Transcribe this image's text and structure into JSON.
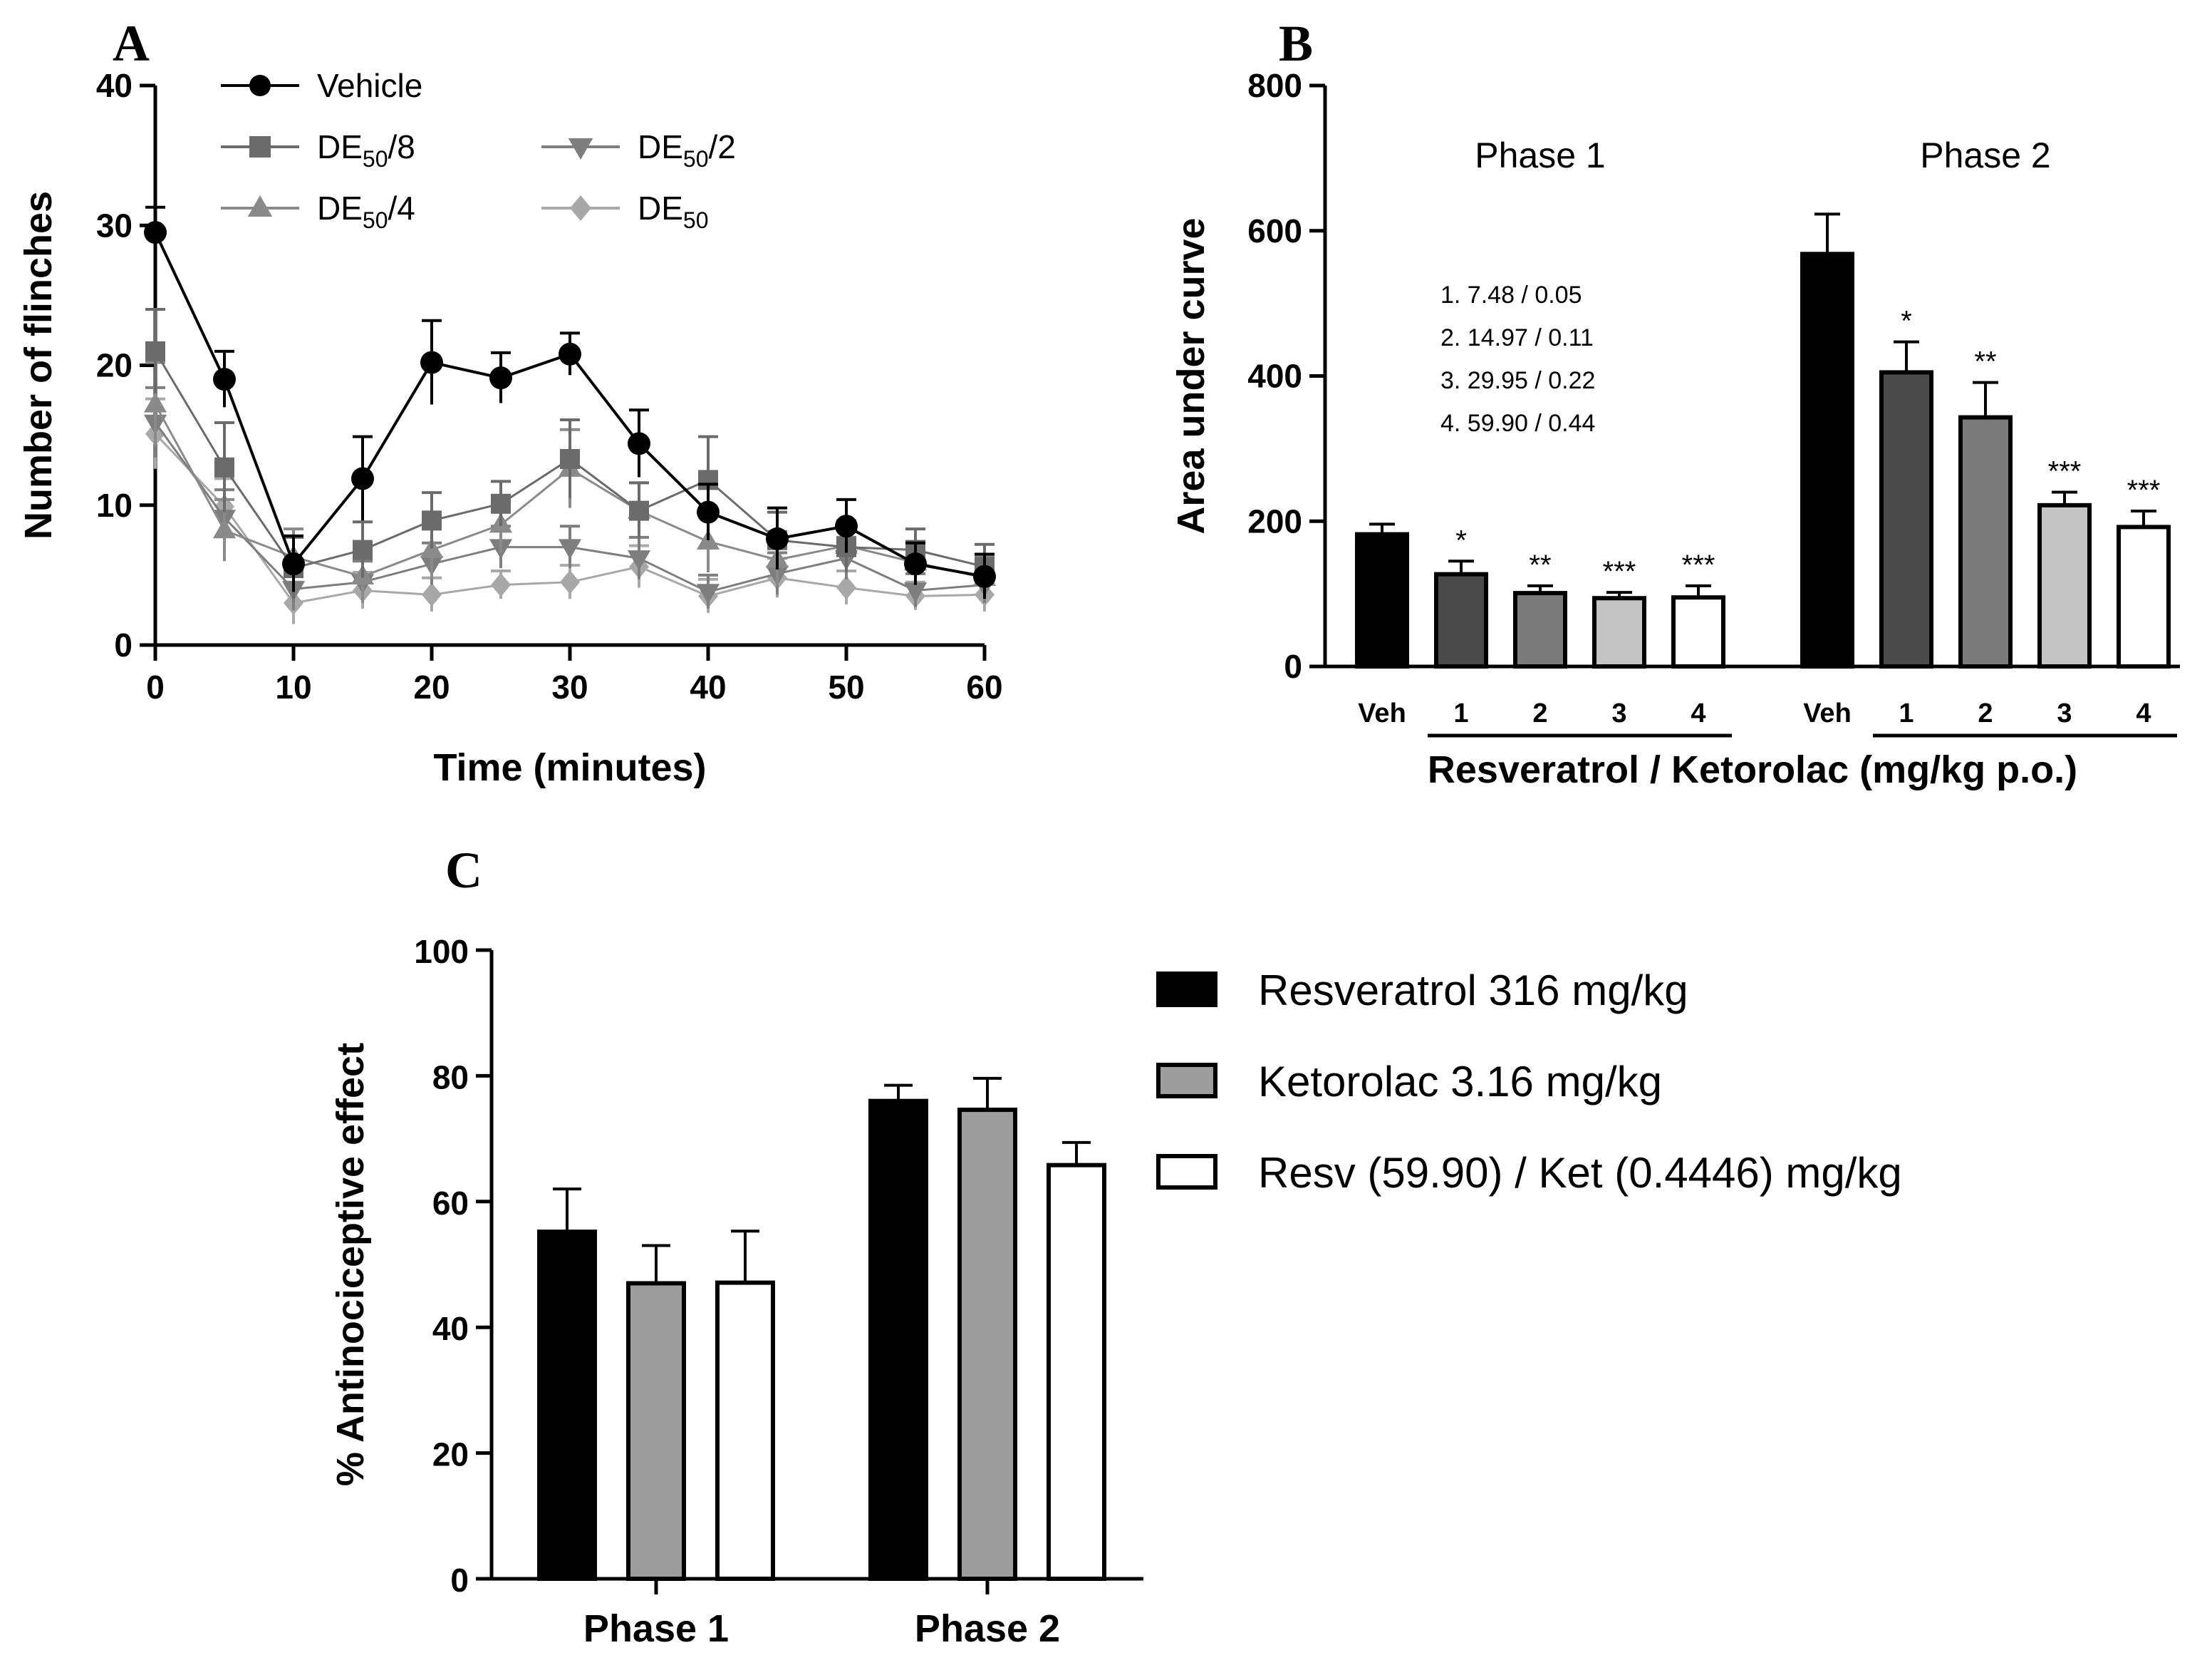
{
  "chart_data": [
    {
      "panel": "A",
      "type": "line",
      "xlabel": "Time (minutes)",
      "ylabel": "Number of flinches",
      "xlim": [
        0,
        60
      ],
      "ylim": [
        0,
        40
      ],
      "xticks": [
        0,
        10,
        20,
        30,
        40,
        50,
        60
      ],
      "yticks": [
        0,
        10,
        20,
        30,
        40
      ],
      "x": [
        0,
        5,
        10,
        15,
        20,
        25,
        30,
        35,
        40,
        45,
        50,
        55,
        60
      ],
      "legend_position": "top-left",
      "series": [
        {
          "name": "Vehicle",
          "marker": "circle",
          "color": "#000000",
          "values": [
            29.5,
            19,
            5.8,
            11.9,
            20.2,
            19.1,
            20.8,
            14.4,
            9.5,
            7.6,
            8.5,
            5.8,
            4.9
          ],
          "errors": [
            1.8,
            2.0,
            2.0,
            3.0,
            3.0,
            1.8,
            1.5,
            2.4,
            2.0,
            2.2,
            1.9,
            1.5,
            1.6
          ]
        },
        {
          "name": "DE50/8",
          "marker": "square",
          "color": "#6b6b6b",
          "values": [
            21,
            12.7,
            5.5,
            6.8,
            8.9,
            10.1,
            13.3,
            9.6,
            11.8,
            7.5,
            7.0,
            6.8,
            5.6
          ],
          "errors": [
            3.0,
            3.2,
            2.2,
            2.0,
            2.0,
            1.6,
            2.8,
            2.0,
            3.1,
            2.0,
            1.8,
            1.5,
            1.6
          ]
        },
        {
          "name": "DE50/4",
          "marker": "triangle-up",
          "color": "#8a8a8a",
          "values": [
            17.2,
            8.2,
            6.3,
            4.9,
            6.8,
            8.6,
            12.6,
            9.6,
            7.4,
            6.1,
            7.1,
            5.9,
            4.8
          ],
          "errors": [
            3.0,
            2.2,
            2.0,
            1.9,
            2.1,
            2.0,
            2.8,
            2.0,
            2.2,
            1.9,
            1.8,
            1.5,
            1.6
          ]
        },
        {
          "name": "DE50/2",
          "marker": "triangle-down",
          "color": "#7e7e7e",
          "values": [
            15.9,
            9.1,
            4.0,
            4.5,
            5.8,
            7.0,
            7.0,
            6.2,
            3.8,
            5.1,
            6.2,
            3.9,
            4.3
          ],
          "errors": [
            2.5,
            2.0,
            1.5,
            1.5,
            1.5,
            1.5,
            1.5,
            1.5,
            1.2,
            1.5,
            1.5,
            1.2,
            1.3
          ]
        },
        {
          "name": "DE50",
          "marker": "diamond",
          "color": "#a8a8a8",
          "values": [
            15.1,
            9.9,
            3.0,
            3.9,
            3.6,
            4.3,
            4.5,
            5.6,
            3.5,
            4.8,
            4.1,
            3.5,
            3.6
          ],
          "errors": [
            2.5,
            2.0,
            1.5,
            1.3,
            1.2,
            1.0,
            1.2,
            1.5,
            1.2,
            1.4,
            1.2,
            1.0,
            1.2
          ]
        }
      ]
    },
    {
      "panel": "B",
      "type": "bar",
      "ylabel": "Area under curve",
      "xlabel": "Resveratrol / Ketorolac (mg/kg p.o.)",
      "ylim": [
        0,
        800
      ],
      "yticks": [
        0,
        200,
        400,
        600,
        800
      ],
      "annotation_lines": [
        "1. 7.48 / 0.05",
        "2. 14.97 / 0.11",
        "3. 29.95 / 0.22",
        "4. 59.90 / 0.44"
      ],
      "groups": [
        {
          "name": "Phase 1",
          "categories": [
            "Veh",
            "1",
            "2",
            "3",
            "4"
          ],
          "values": [
            182,
            127,
            101,
            94,
            95
          ],
          "errors": [
            14,
            18,
            10,
            8,
            16
          ],
          "significance": [
            "",
            "*",
            "**",
            "***",
            "***"
          ]
        },
        {
          "name": "Phase 2",
          "categories": [
            "Veh",
            "1",
            "2",
            "3",
            "4"
          ],
          "values": [
            568,
            405,
            343,
            222,
            192
          ],
          "errors": [
            55,
            42,
            48,
            18,
            22
          ],
          "significance": [
            "",
            "*",
            "**",
            "***",
            "***"
          ]
        }
      ],
      "bar_colors": [
        "#000000",
        "#4a4a4a",
        "#7a7a7a",
        "#c4c4c4",
        "#ffffff"
      ]
    },
    {
      "panel": "C",
      "type": "bar",
      "ylabel": "% Antinociceptive effect",
      "xlabel": "",
      "ylim": [
        0,
        100
      ],
      "yticks": [
        0,
        20,
        40,
        60,
        80,
        100
      ],
      "categories": [
        "Phase 1",
        "Phase 2"
      ],
      "legend_position": "right",
      "series": [
        {
          "name": "Resveratrol 316 mg/kg",
          "color": "#000000",
          "values": [
            55.2,
            76.0
          ],
          "errors": [
            6.8,
            2.5
          ]
        },
        {
          "name": "Ketorolac   3.16 mg/kg",
          "color": "#9d9d9d",
          "values": [
            47.0,
            74.6
          ],
          "errors": [
            6.0,
            5.0
          ]
        },
        {
          "name": "Resv (59.90) / Ket (0.4446) mg/kg",
          "color": "#ffffff",
          "values": [
            47.1,
            65.8
          ],
          "errors": [
            8.2,
            3.6
          ]
        }
      ]
    }
  ]
}
